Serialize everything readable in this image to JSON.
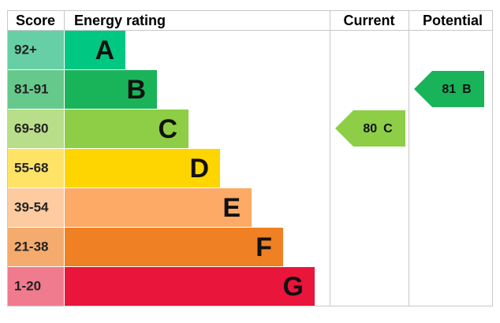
{
  "headers": {
    "score": "Score",
    "rating": "Energy rating",
    "current": "Current",
    "potential": "Potential"
  },
  "bands": [
    {
      "range": "92+",
      "letter": "A",
      "color": "#00c781",
      "score_color": "#67cfa6"
    },
    {
      "range": "81-91",
      "letter": "B",
      "color": "#19b459",
      "score_color": "#66c98c"
    },
    {
      "range": "69-80",
      "letter": "C",
      "color": "#8dce46",
      "score_color": "#b9de8a"
    },
    {
      "range": "55-68",
      "letter": "D",
      "color": "#ffd500",
      "score_color": "#ffe366"
    },
    {
      "range": "39-54",
      "letter": "E",
      "color": "#fcaa65",
      "score_color": "#fdcb9f"
    },
    {
      "range": "21-38",
      "letter": "F",
      "color": "#ef8023",
      "score_color": "#f5ab6e"
    },
    {
      "range": "1-20",
      "letter": "G",
      "color": "#e9153b",
      "score_color": "#f07a8e"
    }
  ],
  "current": {
    "score": 80,
    "rating": "C"
  },
  "potential": {
    "score": 81,
    "rating": "B"
  }
}
